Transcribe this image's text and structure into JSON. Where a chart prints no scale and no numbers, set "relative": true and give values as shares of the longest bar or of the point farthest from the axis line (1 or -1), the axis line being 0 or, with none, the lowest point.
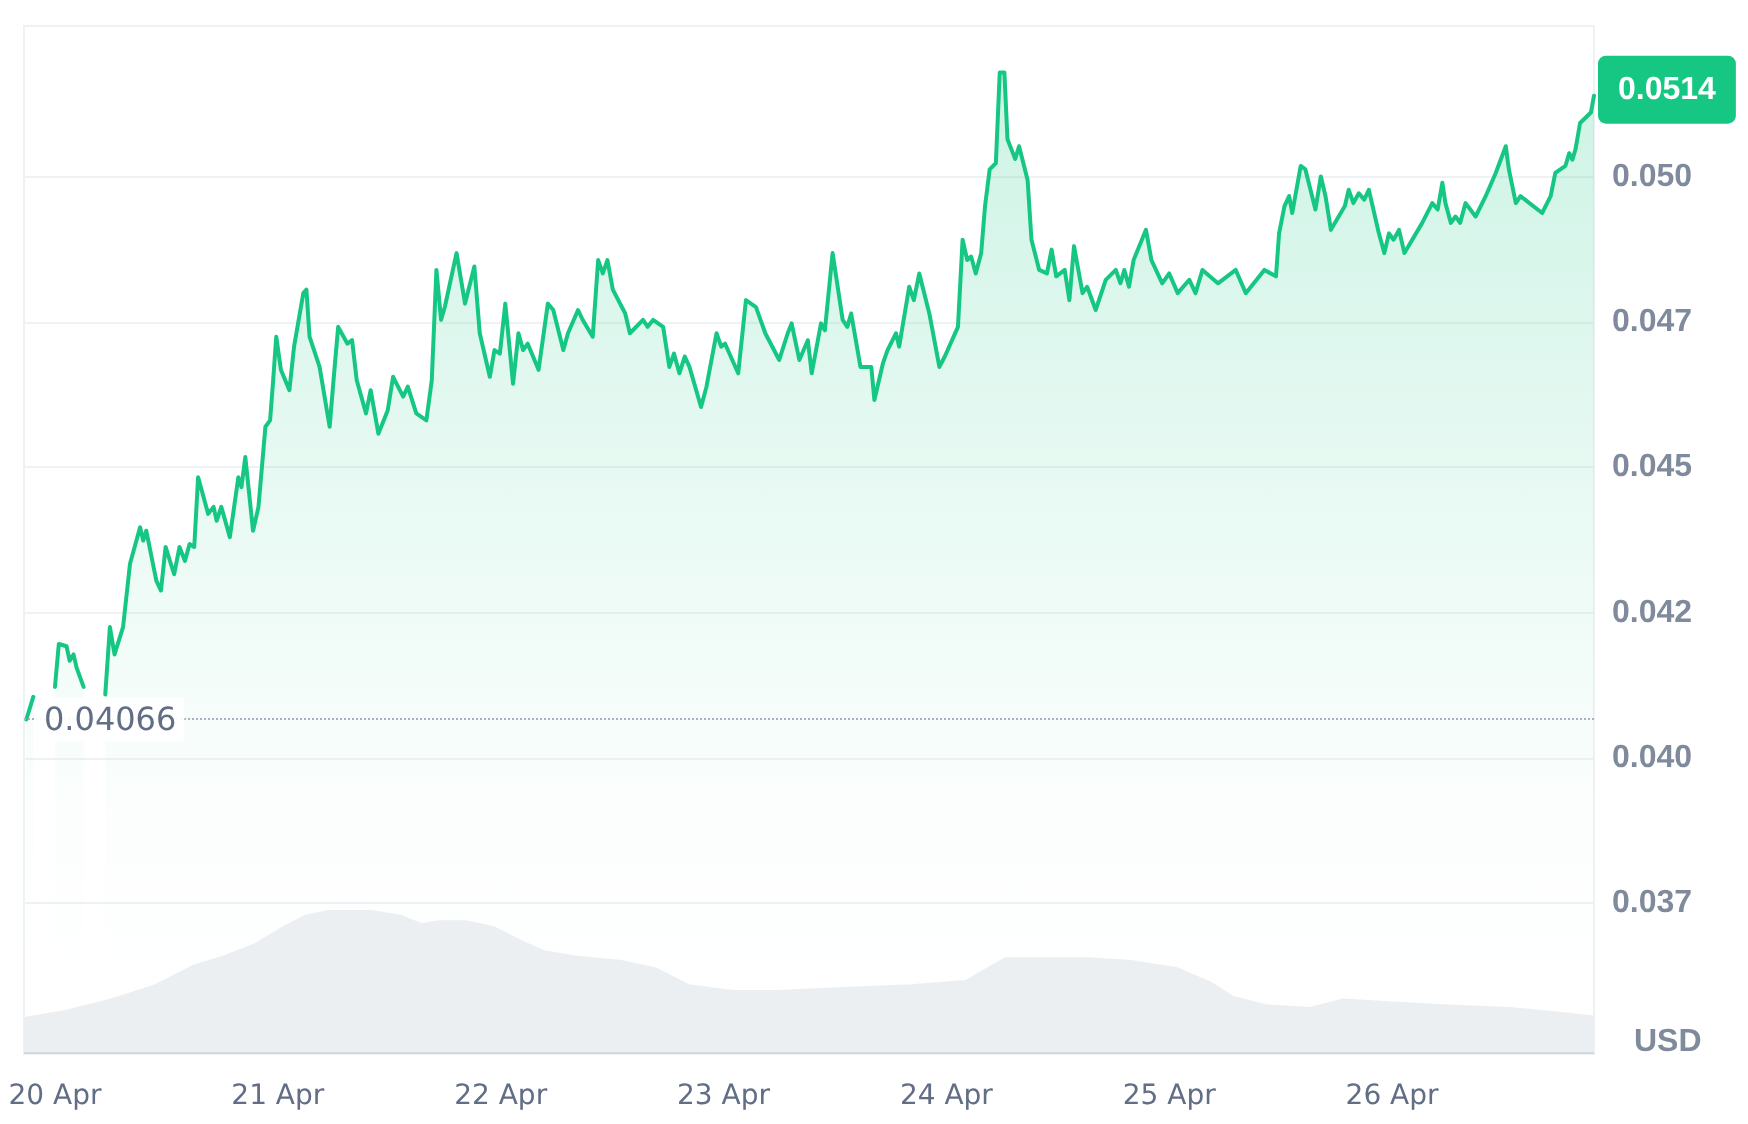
{
  "chart_data": [
    {
      "type": "area",
      "ylabel": "USD",
      "color": "#16c784",
      "x": [
        "--04-19T20:55",
        "--04-19T21:40",
        "--04-19T22:50",
        "--04-20T00:00",
        "--04-20T00:25",
        "--04-20T01:15",
        "--04-20T01:35",
        "--04-20T02:00",
        "--04-20T02:20",
        "--04-20T03:05",
        "--04-20T04:10",
        "--04-20T05:25",
        "--04-20T05:55",
        "--04-20T06:25",
        "--04-20T07:20",
        "--04-20T08:05",
        "--04-20T09:10",
        "--04-20T09:30",
        "--04-20T09:50",
        "--04-20T10:55",
        "--04-20T11:25",
        "--04-20T11:55",
        "--04-20T12:50",
        "--04-20T13:25",
        "--04-20T14:00",
        "--04-20T14:30",
        "--04-20T15:00",
        "--04-20T15:25",
        "--04-20T16:30",
        "--04-20T17:05",
        "--04-20T17:25",
        "--04-20T17:55",
        "--04-20T18:50",
        "--04-20T19:45",
        "--04-20T20:05",
        "--04-20T20:30",
        "--04-20T21:20",
        "--04-20T21:55",
        "--04-20T22:40",
        "--04-20T23:10",
        "--04-20T23:30",
        "--04-20T23:50",
        "--04-21T00:20",
        "--04-21T01:15",
        "--04-21T01:45",
        "--04-21T02:45",
        "--04-21T03:05",
        "--04-21T03:25",
        "--04-21T04:30",
        "--04-21T05:35",
        "--04-21T06:00",
        "--04-21T06:30",
        "--04-21T07:30",
        "--04-21T08:00",
        "--04-21T08:30",
        "--04-21T09:30",
        "--04-21T10:00",
        "--04-21T10:50",
        "--04-21T11:50",
        "--04-21T12:25",
        "--04-21T13:30",
        "--04-21T14:00",
        "--04-21T14:55",
        "--04-21T16:00",
        "--04-21T16:35",
        "--04-21T17:05",
        "--04-21T17:35",
        "--04-21T18:00",
        "--04-21T19:15",
        "--04-21T20:10",
        "--04-21T21:10",
        "--04-21T21:45",
        "--04-21T22:50",
        "--04-21T23:20",
        "--04-21T23:55",
        "--04-22T00:30",
        "--04-22T01:20",
        "--04-22T01:55",
        "--04-22T02:25",
        "--04-22T02:55",
        "--04-22T04:05",
        "--04-22T05:05",
        "--04-22T05:40",
        "--04-22T06:45",
        "--04-22T07:15",
        "--04-22T08:20",
        "--04-22T08:50",
        "--04-22T09:55",
        "--04-22T10:30",
        "--04-22T11:00",
        "--04-22T11:30",
        "--04-22T12:05",
        "--04-22T13:25",
        "--04-22T13:55",
        "--04-22T15:20",
        "--04-22T15:50",
        "--04-22T16:25",
        "--04-22T17:30",
        "--04-22T18:10",
        "--04-22T18:40",
        "--04-22T19:15",
        "--04-22T19:50",
        "--04-22T20:20",
        "--04-22T21:35",
        "--04-22T22:10",
        "--04-22T23:15",
        "--04-22T23:45",
        "--04-23T00:10",
        "--04-23T01:35",
        "--04-23T02:25",
        "--04-23T03:30",
        "--04-23T04:30",
        "--04-23T06:00",
        "--04-23T06:55",
        "--04-23T07:20",
        "--04-23T08:10",
        "--04-23T09:05",
        "--04-23T09:30",
        "--04-23T10:30",
        "--04-23T10:55",
        "--04-23T11:45",
        "--04-23T12:50",
        "--04-23T13:20",
        "--04-23T13:45",
        "--04-23T14:45",
        "--04-23T15:55",
        "--04-23T16:15",
        "--04-23T17:10",
        "--04-23T17:40",
        "--04-23T18:35",
        "--04-23T18:55",
        "--04-23T20:00",
        "--04-23T20:30",
        "--04-23T21:05",
        "--04-23T22:10",
        "--04-23T23:15",
        "--04-23T23:50",
        "--04-24T01:15",
        "--04-24T01:45",
        "--04-24T02:15",
        "--04-24T02:40",
        "--04-24T03:10",
        "--04-24T03:45",
        "--04-24T04:10",
        "--04-24T04:40",
        "--04-24T05:20",
        "--04-24T05:45",
        "--04-24T06:15",
        "--04-24T06:35",
        "--04-24T07:00",
        "--04-24T07:25",
        "--04-24T07:50",
        "--04-24T08:45",
        "--04-24T09:10",
        "--04-24T10:00",
        "--04-24T10:50",
        "--04-24T11:20",
        "--04-24T11:50",
        "--04-24T12:45",
        "--04-24T13:15",
        "--04-24T13:45",
        "--04-24T14:40",
        "--04-24T15:10",
        "--04-24T16:05",
        "--04-24T17:10",
        "--04-24T18:15",
        "--04-24T18:45",
        "--04-24T19:10",
        "--04-24T19:40",
        "--04-24T20:10",
        "--04-24T21:30",
        "--04-24T22:05",
        "--04-24T23:15",
        "--04-25T00:00",
        "--04-25T00:55",
        "--04-25T02:10",
        "--04-25T02:50",
        "--04-25T03:35",
        "--04-25T05:15",
        "--04-25T07:10",
        "--04-25T08:15",
        "--04-25T10:15",
        "--04-25T11:30",
        "--04-25T11:50",
        "--04-25T12:25",
        "--04-25T12:55",
        "--04-25T13:15",
        "--04-25T14:10",
        "--04-25T14:40",
        "--04-25T15:45",
        "--04-25T16:20",
        "--04-25T16:50",
        "--04-25T17:25",
        "--04-25T18:55",
        "--04-25T19:20",
        "--04-25T19:50",
        "--04-25T20:25",
        "--04-25T21:00",
        "--04-25T21:30",
        "--04-25T22:35",
        "--04-25T23:10",
        "--04-25T23:40",
        "--04-26T00:10",
        "--04-26T00:45",
        "--04-26T01:20",
        "--04-26T03:15",
        "--04-26T04:20",
        "--04-26T04:55",
        "--04-26T05:25",
        "--04-26T05:45",
        "--04-26T06:20",
        "--04-26T06:50",
        "--04-26T07:20",
        "--04-26T07:55",
        "--04-26T09:00",
        "--04-26T10:05",
        "--04-26T11:10",
        "--04-26T12:15",
        "--04-26T12:35",
        "--04-26T13:20",
        "--04-26T13:50",
        "--04-26T16:10",
        "--04-26T17:05",
        "--04-26T17:35",
        "--04-26T18:40",
        "--04-26T19:05",
        "--04-26T19:25",
        "--04-26T19:45",
        "--04-26T20:15",
        "--04-26T21:25",
        "--04-26T21:45"
      ],
      "values": [
        0.04066,
        0.04105,
        null,
        0.04122,
        0.04196,
        0.04192,
        0.04167,
        0.04178,
        0.04155,
        0.04122,
        null,
        0.04109,
        0.04225,
        0.04178,
        0.04225,
        0.04334,
        0.04397,
        0.04374,
        0.04391,
        0.04305,
        0.04288,
        0.04363,
        0.04316,
        0.04363,
        0.04339,
        0.04368,
        0.04363,
        0.04483,
        0.0442,
        0.04432,
        0.04408,
        0.04432,
        0.0438,
        0.04483,
        0.04466,
        0.04518,
        0.04391,
        0.04432,
        0.0457,
        0.04581,
        0.0465,
        0.04725,
        0.04668,
        0.04633,
        0.04708,
        0.048,
        0.04806,
        0.04725,
        0.04673,
        0.0457,
        0.0465,
        0.04742,
        0.04713,
        0.04719,
        0.0465,
        0.04593,
        0.04633,
        0.04558,
        0.04598,
        0.04656,
        0.04622,
        0.04639,
        0.04593,
        0.04581,
        0.0465,
        0.0484,
        0.04754,
        0.04777,
        0.04869,
        0.04782,
        0.04846,
        0.04731,
        0.04656,
        0.04702,
        0.04696,
        0.04782,
        0.04644,
        0.04731,
        0.04702,
        0.04713,
        0.04668,
        0.04782,
        0.04771,
        0.04702,
        0.04731,
        0.04771,
        0.04754,
        0.04725,
        0.04857,
        0.04834,
        0.04857,
        0.04806,
        0.04765,
        0.04731,
        0.04754,
        0.04742,
        0.04754,
        0.04742,
        0.04673,
        0.04696,
        0.04662,
        0.04691,
        0.04673,
        0.04604,
        0.04639,
        0.04731,
        0.04708,
        0.04713,
        0.04662,
        0.04788,
        0.04776,
        0.04731,
        0.04685,
        0.04731,
        0.04748,
        0.04685,
        0.04719,
        0.04662,
        0.04748,
        0.04736,
        0.04869,
        0.04754,
        0.04742,
        0.04765,
        0.04673,
        0.04673,
        0.04616,
        0.04679,
        0.04702,
        0.04731,
        0.04708,
        0.04811,
        0.04788,
        0.04834,
        0.04765,
        0.04673,
        0.04691,
        0.04742,
        0.04892,
        0.04857,
        0.04863,
        0.04834,
        0.04869,
        0.0495,
        0.05013,
        0.05024,
        0.0518,
        0.0518,
        0.05065,
        0.05048,
        0.05031,
        0.05053,
        0.04995,
        0.04892,
        0.0484,
        0.04834,
        0.04875,
        0.04829,
        0.0484,
        0.04788,
        0.04881,
        0.048,
        0.04811,
        0.04771,
        0.04823,
        0.0484,
        0.04817,
        0.0484,
        0.04811,
        0.04857,
        0.04909,
        0.04857,
        0.04817,
        0.04834,
        0.048,
        0.04823,
        0.048,
        0.0484,
        0.04817,
        0.0484,
        0.048,
        0.0484,
        0.04829,
        0.04903,
        0.0495,
        0.04967,
        0.04938,
        0.05019,
        0.05013,
        0.04944,
        0.05001,
        0.04967,
        0.04909,
        0.0495,
        0.04978,
        0.04955,
        0.04972,
        0.04961,
        0.04978,
        0.04903,
        0.04869,
        0.04903,
        0.04892,
        0.04909,
        0.04869,
        0.04921,
        0.04955,
        0.04944,
        0.0499,
        0.04955,
        0.04921,
        0.04932,
        0.04921,
        0.04955,
        0.04932,
        0.04967,
        0.05007,
        0.05053,
        0.05013,
        0.04955,
        0.04967,
        0.04938,
        0.04967,
        0.05007,
        0.05019,
        0.05041,
        0.0503,
        0.05047,
        0.05093,
        0.05111,
        0.0514
      ],
      "xlim": [
        "--04-19T20:40",
        "--04-26T21:45"
      ],
      "xticks": [
        {
          "value": "--04-20",
          "label": "20 Apr"
        },
        {
          "value": "--04-21",
          "label": "21 Apr"
        },
        {
          "value": "--04-22",
          "label": "22 Apr"
        },
        {
          "value": "--04-23",
          "label": "23 Apr"
        },
        {
          "value": "--04-24",
          "label": "24 Apr"
        },
        {
          "value": "--04-25",
          "label": "25 Apr"
        },
        {
          "value": "--04-26",
          "label": "26 Apr"
        }
      ],
      "ylim": [
        0.0349,
        0.0526
      ],
      "yticks": [
        {
          "value": 0.0375,
          "label": "0.037"
        },
        {
          "value": 0.04,
          "label": "0.040"
        },
        {
          "value": 0.0425,
          "label": "0.042"
        },
        0.045,
        {
          "value": 0.0475,
          "label": "0.047"
        },
        {
          "value": 0.05,
          "label": "0.050"
        }
      ],
      "grid": "y",
      "ref_lines": [
        {
          "axis": "y",
          "value": 0.04066,
          "label": "0.04066",
          "color": "#a6b0c3",
          "line_style": "dotted"
        }
      ],
      "annotations": [
        {
          "text": "0.0514",
          "x": "--04-26T21:45",
          "y": 0.0514
        }
      ]
    },
    {
      "type": "area",
      "relative": true,
      "color": "#eceff2",
      "tick_labels": false,
      "x": [
        "--04-19T20:40",
        "--04-20T01:15",
        "--04-20T06:05",
        "--04-20T10:50",
        "--04-20T15:00",
        "--04-20T18:00",
        "--04-20T21:35",
        "--04-21T00:35",
        "--04-21T03:00",
        "--04-21T06:00",
        "--04-21T09:30",
        "--04-21T13:10",
        "--04-21T15:30",
        "--04-21T17:20",
        "--04-21T20:20",
        "--04-21T23:15",
        "--04-22T02:15",
        "--04-22T04:40",
        "--04-22T08:15",
        "--04-22T13:05",
        "--04-22T16:40",
        "--04-22T20:15",
        "--04-23T01:00",
        "--04-23T05:45",
        "--04-23T13:00",
        "--04-23T20:10",
        "--04-24T02:05",
        "--04-24T03:55",
        "--04-24T06:20",
        "--04-24T10:30",
        "--04-24T15:15",
        "--04-24T20:05",
        "--04-25T00:50",
        "--04-25T04:25",
        "--04-25T06:50",
        "--04-25T10:25",
        "--04-25T15:10",
        "--04-25T18:45",
        "--04-25T23:35",
        "--04-26T05:30",
        "--04-26T12:45",
        "--04-26T17:30",
        "--04-26T21:45"
      ],
      "values": [
        0.24,
        0.29,
        0.37,
        0.47,
        0.61,
        0.67,
        0.76,
        0.88,
        0.96,
        1,
        1,
        0.96,
        0.9,
        0.92,
        0.92,
        0.88,
        0.78,
        0.71,
        0.67,
        0.64,
        0.59,
        0.47,
        0.43,
        0.43,
        0.45,
        0.47,
        0.5,
        0.57,
        0.66,
        0.66,
        0.66,
        0.64,
        0.59,
        0.49,
        0.39,
        0.33,
        0.31,
        0.37,
        0.35,
        0.33,
        0.31,
        0.28,
        0.25
      ],
      "xlim": [
        "--04-19T20:40",
        "--04-26T21:45"
      ]
    }
  ]
}
